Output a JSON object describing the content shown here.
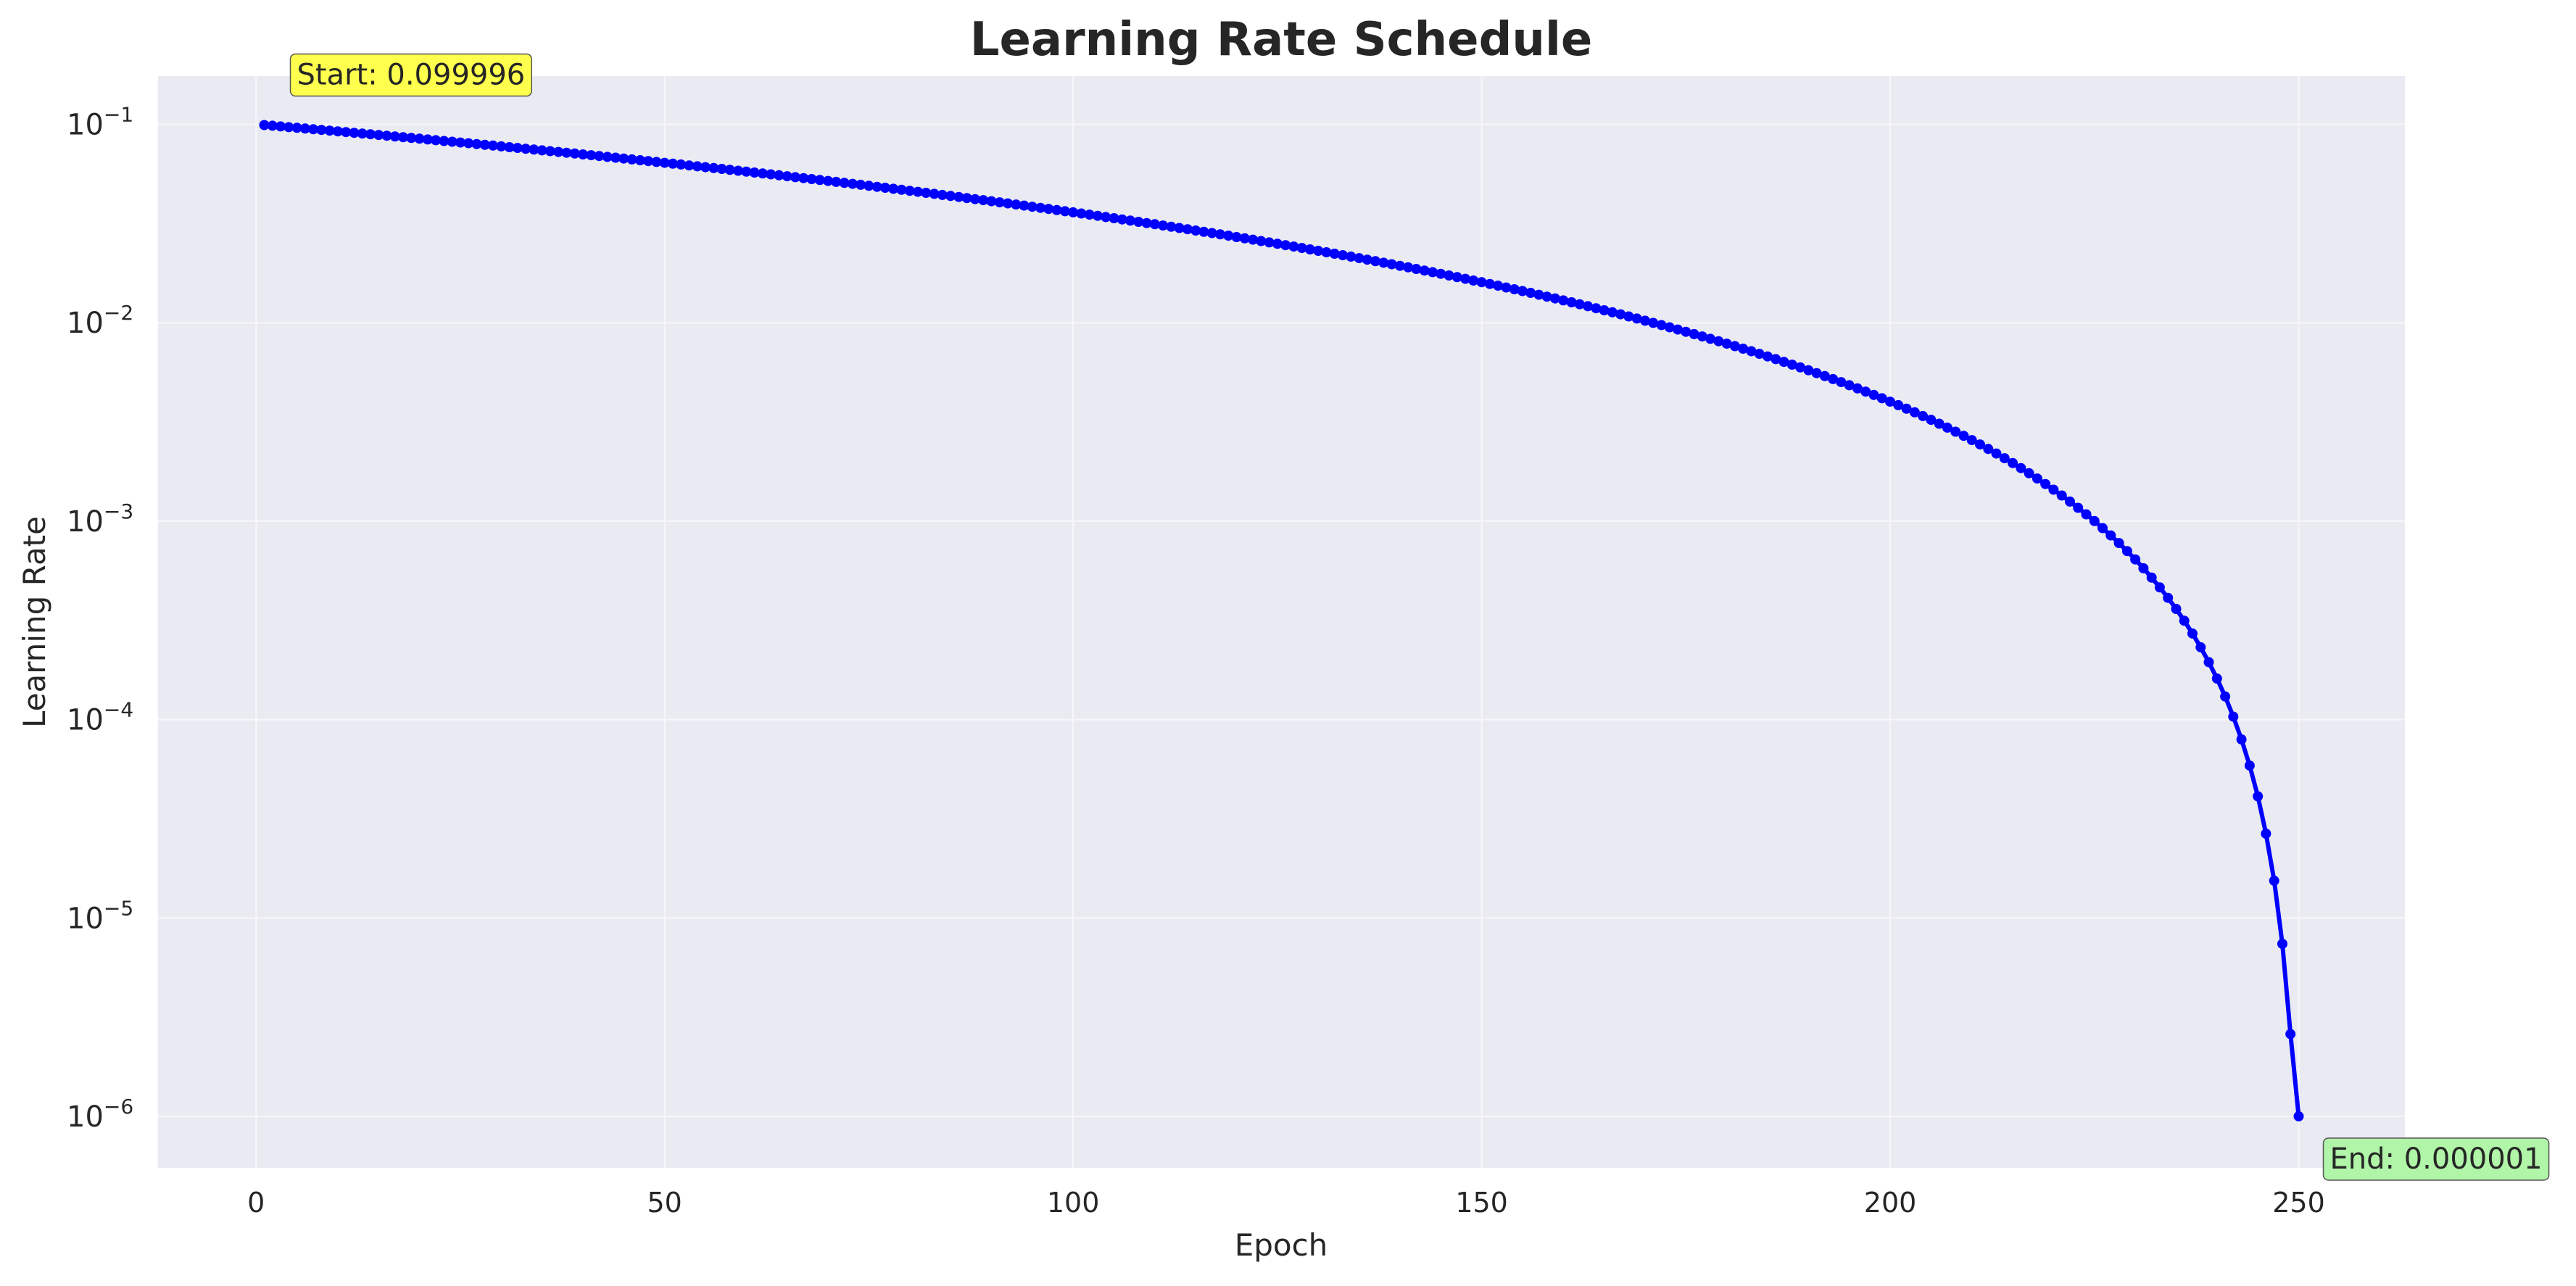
{
  "chart_data": {
    "type": "line",
    "title": "Learning Rate Schedule",
    "xlabel": "Epoch",
    "ylabel": "Learning Rate",
    "yscale": "log",
    "xlim": [
      -12,
      263
    ],
    "ylim": [
      5.5e-07,
      0.175
    ],
    "grid": true,
    "x_ticks": [
      {
        "value": 0,
        "label": "0"
      },
      {
        "value": 50,
        "label": "50"
      },
      {
        "value": 100,
        "label": "100"
      },
      {
        "value": 150,
        "label": "150"
      },
      {
        "value": 200,
        "label": "200"
      },
      {
        "value": 250,
        "label": "250"
      }
    ],
    "y_ticks": [
      {
        "value": 0.1,
        "base": "10",
        "exp": "−1"
      },
      {
        "value": 0.01,
        "base": "10",
        "exp": "−2"
      },
      {
        "value": 0.001,
        "base": "10",
        "exp": "−3"
      },
      {
        "value": 0.0001,
        "base": "10",
        "exp": "−4"
      },
      {
        "value": 1e-05,
        "base": "10",
        "exp": "−5"
      },
      {
        "value": 1e-06,
        "base": "10",
        "exp": "−6"
      }
    ],
    "series": [
      {
        "color": "#0000ff",
        "marker": "circle",
        "schedule": {
          "kind": "polynomial-decay",
          "lr_start": 0.1,
          "lr_end": 1e-06,
          "total_epochs": 250,
          "power": 2
        },
        "x_range": [
          1,
          250
        ]
      }
    ],
    "annotations": [
      {
        "name": "start",
        "text": "Start: 0.099996",
        "x": 1,
        "y": 0.099996,
        "bg": "#ffff4d"
      },
      {
        "name": "end",
        "text": "End: 0.000001",
        "x": 250,
        "y": 1e-06,
        "bg": "#b0f5a8"
      }
    ],
    "colors": {
      "plot_bg": "#eaeaf2",
      "grid": "#f7f7fa",
      "line": "#0000ff"
    }
  }
}
